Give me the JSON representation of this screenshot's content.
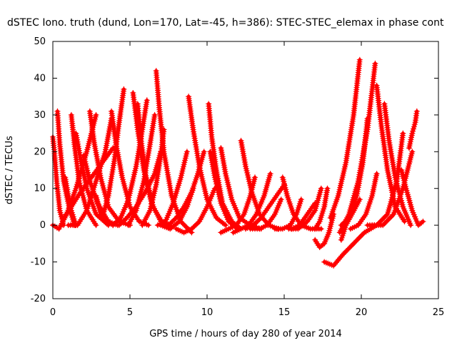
{
  "chart_data": {
    "type": "scatter",
    "title": "dSTEC Iono. truth (dund, Lon=170, Lat=-45, h=386): STEC-STEC_elemax in phase cont",
    "xlabel": "GPS time / hours of day 280 of year 2014",
    "ylabel": "dSTEC  / TECUs",
    "xlim": [
      0,
      25
    ],
    "ylim": [
      -20,
      50
    ],
    "xticks": [
      "0",
      "5",
      "10",
      "15",
      "20",
      "25"
    ],
    "yticks": [
      "-20",
      "-10",
      "0",
      "10",
      "20",
      "30",
      "40",
      "50"
    ],
    "grid": false,
    "marker": "+",
    "color": "#ff0000",
    "series": [
      {
        "x": [
          0.0,
          0.1,
          0.25,
          0.45,
          0.7
        ],
        "y": [
          24,
          20,
          12,
          4,
          0
        ]
      },
      {
        "x": [
          0.3,
          0.45,
          0.7,
          1.0,
          1.4
        ],
        "y": [
          31,
          22,
          12,
          6,
          0
        ]
      },
      {
        "x": [
          0.0,
          0.4,
          0.9,
          1.5,
          2.2,
          2.8
        ],
        "y": [
          0,
          -1,
          3,
          10,
          20,
          30
        ]
      },
      {
        "x": [
          1.2,
          1.4,
          1.7,
          2.2,
          2.8
        ],
        "y": [
          30,
          22,
          12,
          4,
          0
        ]
      },
      {
        "x": [
          0.8,
          1.0,
          1.2,
          1.5
        ],
        "y": [
          13,
          8,
          4,
          0
        ]
      },
      {
        "x": [
          1.5,
          1.8,
          2.2,
          2.8,
          3.6
        ],
        "y": [
          25,
          18,
          10,
          3,
          0
        ]
      },
      {
        "x": [
          2.4,
          2.7,
          3.1,
          3.6,
          4.3,
          5.0
        ],
        "y": [
          31,
          22,
          13,
          5,
          1,
          0
        ]
      },
      {
        "x": [
          2.0,
          2.4,
          2.9,
          3.6,
          4.2
        ],
        "y": [
          19,
          12,
          6,
          1,
          0
        ]
      },
      {
        "x": [
          2.8,
          3.1,
          3.5,
          3.9
        ],
        "y": [
          8,
          3,
          1,
          0
        ]
      },
      {
        "x": [
          1.0,
          1.6,
          2.2,
          2.8,
          3.4,
          3.8
        ],
        "y": [
          0,
          0,
          4,
          12,
          20,
          29
        ]
      },
      {
        "x": [
          3.8,
          4.1,
          4.5,
          5.0,
          5.6,
          6.2
        ],
        "y": [
          31,
          22,
          13,
          5,
          1,
          0
        ]
      },
      {
        "x": [
          4.6,
          4.3,
          4.0,
          3.6,
          3.2
        ],
        "y": [
          37,
          28,
          18,
          8,
          2
        ]
      },
      {
        "x": [
          5.2,
          5.5,
          5.9,
          6.4,
          7.0,
          7.6
        ],
        "y": [
          36,
          26,
          15,
          6,
          1,
          0
        ]
      },
      {
        "x": [
          5.5,
          5.7,
          6.0,
          6.5,
          7.2
        ],
        "y": [
          33,
          24,
          14,
          5,
          0
        ]
      },
      {
        "x": [
          6.1,
          5.8,
          5.4,
          4.9,
          4.4,
          3.9
        ],
        "y": [
          34,
          26,
          16,
          7,
          2,
          0
        ]
      },
      {
        "x": [
          6.6,
          6.3,
          5.9,
          5.4,
          4.9
        ],
        "y": [
          30,
          22,
          12,
          4,
          0
        ]
      },
      {
        "x": [
          6.7,
          6.9,
          7.2,
          7.7,
          8.3,
          9.0
        ],
        "y": [
          42,
          32,
          20,
          8,
          1,
          -2
        ]
      },
      {
        "x": [
          7.2,
          7.0,
          6.7,
          6.3,
          5.8
        ],
        "y": [
          26,
          19,
          11,
          4,
          0
        ]
      },
      {
        "x": [
          8.8,
          9.1,
          9.5,
          10.0,
          10.6,
          11.2
        ],
        "y": [
          35,
          26,
          16,
          7,
          2,
          0
        ]
      },
      {
        "x": [
          8.7,
          8.3,
          7.8,
          7.3,
          6.8
        ],
        "y": [
          20,
          13,
          6,
          1,
          0
        ]
      },
      {
        "x": [
          9.1,
          8.7,
          8.2,
          7.6,
          7.0
        ],
        "y": [
          10,
          5,
          1,
          -1,
          0
        ]
      },
      {
        "x": [
          10.1,
          10.3,
          10.6,
          11.0,
          11.6,
          12.2
        ],
        "y": [
          33,
          24,
          15,
          6,
          1,
          -1
        ]
      },
      {
        "x": [
          10.2,
          10.5,
          10.9,
          11.4,
          12.0
        ],
        "y": [
          20,
          13,
          6,
          1,
          -1
        ]
      },
      {
        "x": [
          10.9,
          11.2,
          11.6,
          12.1,
          12.8,
          13.5
        ],
        "y": [
          21,
          14,
          7,
          2,
          0,
          -1
        ]
      },
      {
        "x": [
          10.5,
          10.0,
          9.5,
          9.0,
          8.5,
          8.0
        ],
        "y": [
          10,
          5,
          1,
          -1,
          -2,
          -1
        ]
      },
      {
        "x": [
          12.2,
          12.5,
          12.9,
          13.4,
          14.0,
          14.6
        ],
        "y": [
          23,
          16,
          9,
          3,
          0,
          -1
        ]
      },
      {
        "x": [
          13.1,
          12.8,
          12.4,
          11.9,
          11.4,
          10.9
        ],
        "y": [
          13,
          8,
          3,
          0,
          -1,
          -2
        ]
      },
      {
        "x": [
          14.1,
          13.7,
          13.2,
          12.7,
          12.2,
          11.7
        ],
        "y": [
          14,
          8,
          3,
          0,
          -1,
          -2
        ]
      },
      {
        "x": [
          14.9,
          15.2,
          15.6,
          16.1,
          16.7,
          17.4
        ],
        "y": [
          13,
          8,
          3,
          0,
          -1,
          -1
        ]
      },
      {
        "x": [
          14.8,
          14.4,
          13.9,
          13.4,
          12.8
        ],
        "y": [
          7,
          3,
          0,
          -1,
          -1
        ]
      },
      {
        "x": [
          16.1,
          15.8,
          15.4,
          14.9,
          14.4
        ],
        "y": [
          7,
          3,
          0,
          -1,
          -1
        ]
      },
      {
        "x": [
          17.4,
          17.0,
          16.5,
          15.9,
          15.3
        ],
        "y": [
          10,
          4,
          1,
          -1,
          -1
        ]
      },
      {
        "x": [
          17.0,
          17.3,
          17.6,
          17.9,
          18.2
        ],
        "y": [
          -4,
          -6,
          -5,
          -2,
          3
        ]
      },
      {
        "x": [
          17.6,
          18.2,
          18.8,
          19.5,
          20.2,
          21.0
        ],
        "y": [
          -10,
          -11,
          -8,
          -5,
          -2,
          0
        ]
      },
      {
        "x": [
          17.8,
          17.6,
          17.3,
          17.0
        ],
        "y": [
          10,
          5,
          1,
          -1
        ]
      },
      {
        "x": [
          18.7,
          19.0,
          19.4,
          19.9
        ],
        "y": [
          -4,
          0,
          3,
          7
        ]
      },
      {
        "x": [
          18.0,
          18.5,
          19.0,
          19.5,
          19.9
        ],
        "y": [
          2,
          8,
          17,
          30,
          45
        ]
      },
      {
        "x": [
          18.6,
          19.2,
          19.8,
          20.4,
          20.9
        ],
        "y": [
          -2,
          3,
          12,
          26,
          44
        ]
      },
      {
        "x": [
          20.4,
          20.1,
          19.7,
          19.2,
          18.7
        ],
        "y": [
          29,
          17,
          8,
          2,
          0
        ]
      },
      {
        "x": [
          21.0,
          20.7,
          20.3,
          19.8,
          19.3
        ],
        "y": [
          14,
          8,
          3,
          0,
          -1
        ]
      },
      {
        "x": [
          21.0,
          21.3,
          21.7,
          22.2,
          22.8
        ],
        "y": [
          38,
          27,
          15,
          5,
          1
        ]
      },
      {
        "x": [
          21.5,
          21.8,
          22.2,
          22.7,
          23.2
        ],
        "y": [
          33,
          23,
          13,
          5,
          0
        ]
      },
      {
        "x": [
          20.4,
          21.0,
          21.7,
          22.3,
          22.7
        ],
        "y": [
          0,
          0,
          3,
          12,
          25
        ]
      },
      {
        "x": [
          20.7,
          21.4,
          22.1,
          22.7,
          23.3
        ],
        "y": [
          0,
          0,
          3,
          10,
          20
        ]
      },
      {
        "x": [
          22.6,
          22.9,
          23.3,
          23.7,
          24.0
        ],
        "y": [
          15,
          10,
          4,
          0,
          1
        ]
      },
      {
        "x": [
          23.1,
          23.3,
          23.5,
          23.6
        ],
        "y": [
          21,
          25,
          28,
          31
        ]
      },
      {
        "x": [
          0.7,
          1.2,
          1.8,
          2.5,
          3.2,
          3.9
        ],
        "y": [
          2,
          5,
          9,
          13,
          17,
          21
        ]
      },
      {
        "x": [
          4.3,
          4.8,
          5.4,
          6.0,
          6.6,
          7.0
        ],
        "y": [
          0,
          2,
          5,
          9,
          14,
          20
        ]
      },
      {
        "x": [
          7.5,
          8.0,
          8.5,
          9.0,
          9.4,
          9.8
        ],
        "y": [
          0,
          2,
          5,
          9,
          14,
          20
        ]
      },
      {
        "x": [
          12.5,
          13.0,
          13.5,
          14.0,
          14.5,
          15.0
        ],
        "y": [
          -1,
          0,
          2,
          5,
          8,
          11
        ]
      },
      {
        "x": [
          15.5,
          16.0,
          16.5,
          17.0
        ],
        "y": [
          -1,
          0,
          3,
          6
        ]
      }
    ]
  }
}
